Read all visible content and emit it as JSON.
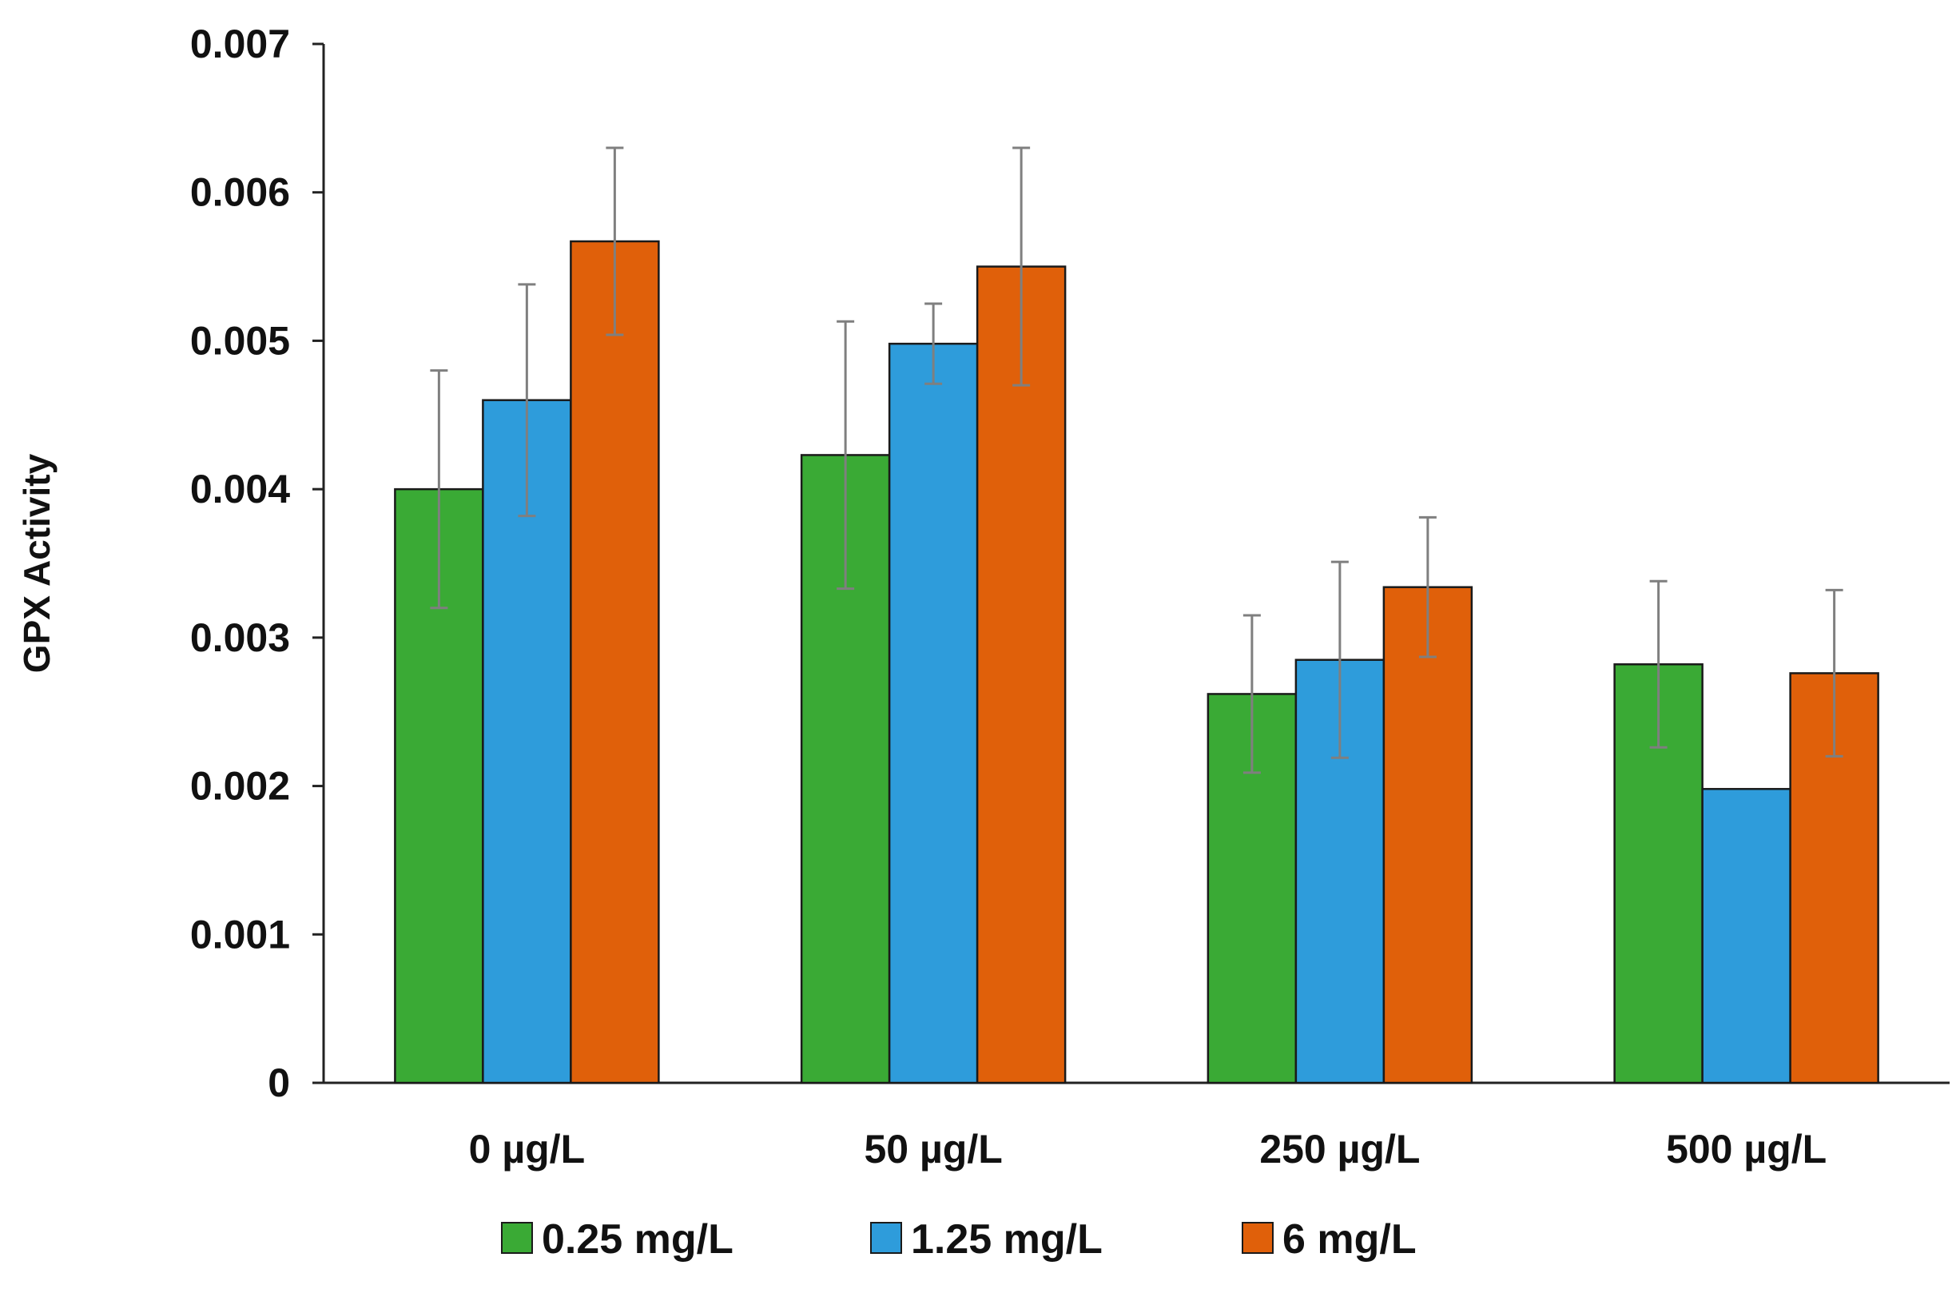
{
  "chart_data": {
    "type": "bar",
    "title": "",
    "xlabel": "",
    "ylabel": "GPX Activity",
    "ylim": [
      0,
      0.007
    ],
    "yticks": [
      {
        "value": 0,
        "label": "0"
      },
      {
        "value": 0.001,
        "label": "0.001"
      },
      {
        "value": 0.002,
        "label": "0.002"
      },
      {
        "value": 0.003,
        "label": "0.003"
      },
      {
        "value": 0.004,
        "label": "0.004"
      },
      {
        "value": 0.005,
        "label": "0.005"
      },
      {
        "value": 0.006,
        "label": "0.006"
      },
      {
        "value": 0.007,
        "label": "0.007"
      }
    ],
    "categories": [
      "0 µg/L",
      "50 µg/L",
      "250 µg/L",
      "500 µg/L"
    ],
    "series": [
      {
        "name": "0.25 mg/L",
        "color": "#3aaa35",
        "values": [
          0.004,
          0.00423,
          0.00262,
          0.00282
        ],
        "errors": [
          0.0008,
          0.0009,
          0.00053,
          0.00056
        ]
      },
      {
        "name": "1.25 mg/L",
        "color": "#2e9cdb",
        "values": [
          0.0046,
          0.00498,
          0.00285,
          0.00198
        ],
        "errors": [
          0.00078,
          0.00027,
          0.00066,
          0.0
        ]
      },
      {
        "name": "6 mg/L",
        "color": "#e0600a",
        "values": [
          0.00567,
          0.0055,
          0.00334,
          0.00276
        ],
        "errors": [
          0.00063,
          0.0008,
          0.00047,
          0.00056
        ]
      }
    ],
    "legend_position": "bottom",
    "grid": false
  }
}
